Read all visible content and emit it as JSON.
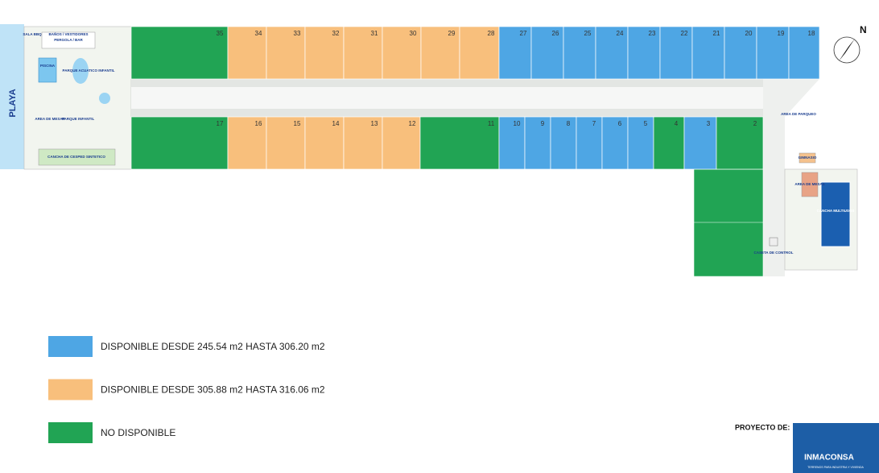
{
  "beach": "PLAYA",
  "compass": "N",
  "amenities": {
    "bbq": "SALA BBQ",
    "changing": "BAÑOS / VESTIDORES",
    "pergola": "PERGOLA / BAR",
    "pool": "PISCINA",
    "water_park": "PARQUE ACUATICO INFANTIL",
    "tables_left": "AREA DE MESAS",
    "playground": "PARQUE INFANTIL",
    "turf_court": "CANCHA DE CESPED SINTETICO",
    "parking": "AREA DE PARQUEO",
    "gym": "GIMNASIO",
    "tables_right": "AREA DE MESAS",
    "court": "CANCHA MULTIUSOS",
    "control": "CASETA DE CONTROL"
  },
  "legend": [
    {
      "label": "DISPONIBLE DESDE 245.54 m2 HASTA 306.20 m2",
      "color": "#4ea6e4"
    },
    {
      "label": "DISPONIBLE DESDE 305.88 m2 HASTA 316.06 m2",
      "color": "#f8bf7c"
    },
    {
      "label": "NO DISPONIBLE",
      "color": "#21a454"
    }
  ],
  "top_lots": [
    {
      "number": "35",
      "status": 2
    },
    {
      "number": "34",
      "status": 1
    },
    {
      "number": "33",
      "status": 1
    },
    {
      "number": "32",
      "status": 1
    },
    {
      "number": "31",
      "status": 1
    },
    {
      "number": "30",
      "status": 1
    },
    {
      "number": "29",
      "status": 1
    },
    {
      "number": "28",
      "status": 1
    },
    {
      "number": "27",
      "status": 0
    },
    {
      "number": "26",
      "status": 0
    },
    {
      "number": "25",
      "status": 0
    },
    {
      "number": "24",
      "status": 0
    },
    {
      "number": "23",
      "status": 0
    },
    {
      "number": "22",
      "status": 0
    },
    {
      "number": "21",
      "status": 0
    },
    {
      "number": "20",
      "status": 0
    },
    {
      "number": "19",
      "status": 0
    },
    {
      "number": "18",
      "status": 0
    }
  ],
  "bottom_lots": [
    {
      "number": "17",
      "status": 2
    },
    {
      "number": "16",
      "status": 1
    },
    {
      "number": "15",
      "status": 1
    },
    {
      "number": "14",
      "status": 1
    },
    {
      "number": "13",
      "status": 1
    },
    {
      "number": "12",
      "status": 1
    },
    {
      "number": "11",
      "status": 2
    },
    {
      "number": "10",
      "status": 0
    },
    {
      "number": "9",
      "status": 0
    },
    {
      "number": "8",
      "status": 0
    },
    {
      "number": "7",
      "status": 0
    },
    {
      "number": "6",
      "status": 0
    },
    {
      "number": "5",
      "status": 0
    },
    {
      "number": "4",
      "status": 2
    },
    {
      "number": "3",
      "status": 0
    },
    {
      "number": "2",
      "status": 2
    }
  ],
  "footer": {
    "project": "PROYECTO DE:",
    "company": "INMACONSA",
    "tagline": "TERRENOS PARA INDUSTRIA Y VIVIENDA"
  }
}
